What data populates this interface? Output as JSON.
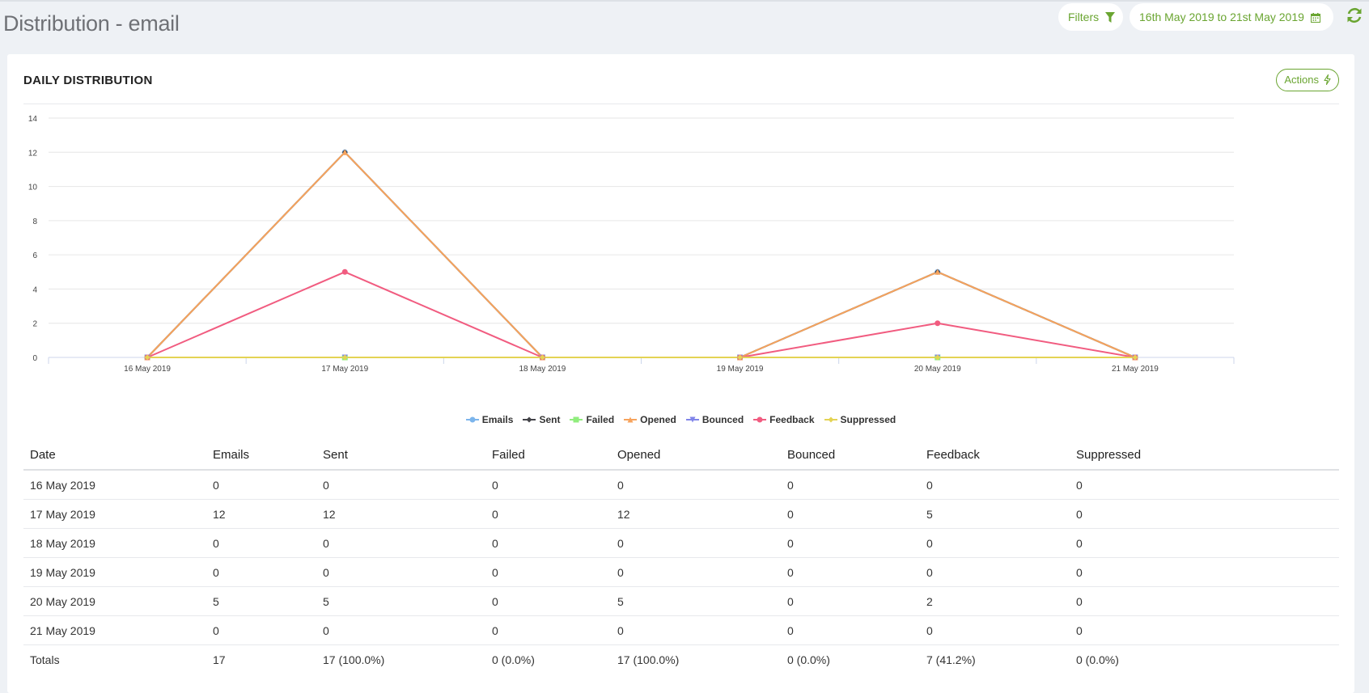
{
  "header": {
    "title": "Distribution - email",
    "filters_label": "Filters",
    "date_range_label": "16th May 2019 to 21st May 2019"
  },
  "card": {
    "title": "DAILY DISTRIBUTION",
    "actions_label": "Actions"
  },
  "colors": {
    "accent": "#6aa531",
    "Emails": "#7cb5ec",
    "Sent": "#434348",
    "Failed": "#90ed7d",
    "Opened": "#f7a35c",
    "Bounced": "#8085e9",
    "Feedback": "#f15c80",
    "Suppressed": "#e4d354"
  },
  "chart_data": {
    "type": "line",
    "categories": [
      "16 May 2019",
      "17 May 2019",
      "18 May 2019",
      "19 May 2019",
      "20 May 2019",
      "21 May 2019"
    ],
    "ylim": [
      0,
      14
    ],
    "yticks": [
      0,
      2,
      4,
      6,
      8,
      10,
      12,
      14
    ],
    "grid": true,
    "legend_position": "bottom-center",
    "series": [
      {
        "name": "Emails",
        "marker": "circle",
        "values": [
          0,
          12,
          0,
          0,
          5,
          0
        ]
      },
      {
        "name": "Sent",
        "marker": "diamond",
        "values": [
          0,
          12,
          0,
          0,
          5,
          0
        ]
      },
      {
        "name": "Failed",
        "marker": "square",
        "values": [
          0,
          0,
          0,
          0,
          0,
          0
        ]
      },
      {
        "name": "Opened",
        "marker": "triangle",
        "values": [
          0,
          12,
          0,
          0,
          5,
          0
        ]
      },
      {
        "name": "Bounced",
        "marker": "triangle-down",
        "values": [
          0,
          0,
          0,
          0,
          0,
          0
        ]
      },
      {
        "name": "Feedback",
        "marker": "circle",
        "values": [
          0,
          5,
          0,
          0,
          2,
          0
        ]
      },
      {
        "name": "Suppressed",
        "marker": "diamond",
        "values": [
          0,
          0,
          0,
          0,
          0,
          0
        ]
      }
    ]
  },
  "table": {
    "headers": [
      "Date",
      "Emails",
      "Sent",
      "Failed",
      "Opened",
      "Bounced",
      "Feedback",
      "Suppressed"
    ],
    "rows": [
      [
        "16 May 2019",
        "0",
        "0",
        "0",
        "0",
        "0",
        "0",
        "0"
      ],
      [
        "17 May 2019",
        "12",
        "12",
        "0",
        "12",
        "0",
        "5",
        "0"
      ],
      [
        "18 May 2019",
        "0",
        "0",
        "0",
        "0",
        "0",
        "0",
        "0"
      ],
      [
        "19 May 2019",
        "0",
        "0",
        "0",
        "0",
        "0",
        "0",
        "0"
      ],
      [
        "20 May 2019",
        "5",
        "5",
        "0",
        "5",
        "0",
        "2",
        "0"
      ],
      [
        "21 May 2019",
        "0",
        "0",
        "0",
        "0",
        "0",
        "0",
        "0"
      ]
    ],
    "totals": [
      "Totals",
      "17",
      "17 (100.0%)",
      "0 (0.0%)",
      "17 (100.0%)",
      "0 (0.0%)",
      "7 (41.2%)",
      "0 (0.0%)"
    ]
  }
}
